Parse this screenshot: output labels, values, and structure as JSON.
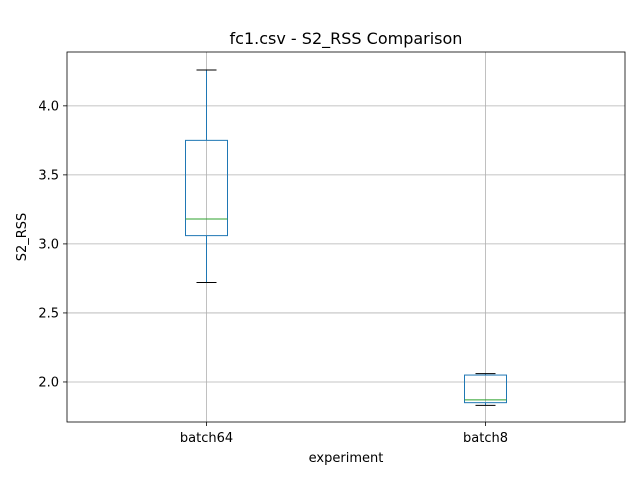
{
  "chart_data": {
    "type": "box",
    "title": "fc1.csv - S2_RSS Comparison",
    "xlabel": "experiment",
    "ylabel": "S2_RSS",
    "categories": [
      "batch64",
      "batch8"
    ],
    "boxes": [
      {
        "category": "batch64",
        "whisker_low": 2.72,
        "q1": 3.06,
        "median": 3.18,
        "q3": 3.75,
        "whisker_high": 4.26
      },
      {
        "category": "batch8",
        "whisker_low": 1.83,
        "q1": 1.85,
        "median": 1.87,
        "q3": 2.05,
        "whisker_high": 2.06
      }
    ],
    "ylim": [
      1.71,
      4.39
    ],
    "yticks": [
      2.0,
      2.5,
      3.0,
      3.5,
      4.0
    ],
    "ytick_labels": [
      "2.0",
      "2.5",
      "3.0",
      "3.5",
      "4.0"
    ],
    "grid": true,
    "colors": {
      "box": "#1f77b4",
      "median": "#2ca02c",
      "caps": "#000000",
      "grid": "#b0b0b0"
    }
  }
}
